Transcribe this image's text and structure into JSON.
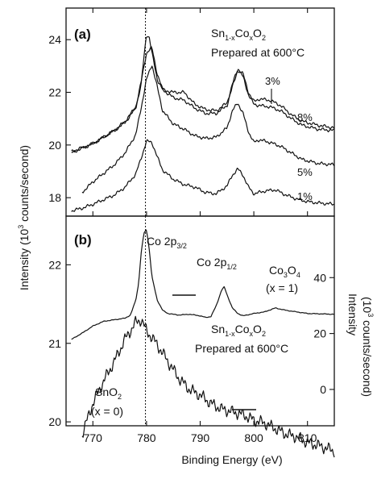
{
  "chart_data": [
    {
      "panel": "(a)",
      "type": "line",
      "xlim": [
        765,
        815
      ],
      "ylim": [
        17.3,
        25.2
      ],
      "xticks": [
        770,
        780,
        790,
        800,
        810
      ],
      "yticks": [
        18,
        20,
        22,
        24
      ],
      "vertical_marker_x": 779.8,
      "annotations": {
        "formula": "Sn1-xCoxO2",
        "prepared": "Prepared at 600°C"
      },
      "series": [
        {
          "name": "8%",
          "x": [
            766,
            770,
            774,
            776,
            778,
            779,
            779.5,
            780,
            780.5,
            781,
            782,
            783,
            785,
            787,
            789,
            791,
            793,
            795,
            796,
            797,
            798,
            799,
            800,
            801,
            803,
            805,
            807,
            809,
            812,
            815
          ],
          "y": [
            19.7,
            20.05,
            20.55,
            20.85,
            21.4,
            22.3,
            23.3,
            24.2,
            24.1,
            23.5,
            22.5,
            22.1,
            22.0,
            22.0,
            21.55,
            21.35,
            21.3,
            21.6,
            22.3,
            22.9,
            22.7,
            22.0,
            21.65,
            21.75,
            21.7,
            21.5,
            21.15,
            20.9,
            20.75,
            20.65
          ]
        },
        {
          "name": "3%",
          "x": [
            766,
            770,
            774,
            776,
            778,
            779,
            780,
            781,
            782,
            783,
            785,
            787,
            789,
            791,
            793,
            795,
            796,
            797,
            798,
            799,
            800,
            801,
            803,
            805,
            807,
            809,
            812,
            815
          ],
          "y": [
            19.75,
            20.05,
            20.55,
            20.9,
            21.45,
            22.4,
            23.5,
            23.7,
            22.7,
            22.1,
            21.8,
            21.7,
            21.4,
            21.2,
            21.2,
            21.5,
            22.2,
            22.85,
            22.6,
            21.9,
            21.55,
            21.5,
            21.45,
            21.3,
            21.0,
            20.75,
            20.6,
            20.55
          ]
        },
        {
          "name": "5%",
          "x": [
            768,
            770,
            774,
            776,
            778,
            779,
            780,
            781,
            782,
            783,
            785,
            787,
            789,
            791,
            793,
            795,
            796,
            797,
            798,
            799,
            800,
            801,
            803,
            805,
            807,
            809,
            812,
            815
          ],
          "y": [
            18.2,
            18.6,
            19.25,
            19.7,
            20.4,
            21.4,
            22.5,
            23.05,
            22.2,
            21.3,
            20.8,
            20.6,
            20.35,
            20.25,
            20.3,
            20.65,
            21.3,
            21.6,
            21.2,
            20.5,
            20.1,
            20.2,
            20.1,
            19.95,
            19.7,
            19.45,
            19.3,
            19.25
          ]
        },
        {
          "name": "1%",
          "x": [
            766,
            768,
            770,
            774,
            776,
            778,
            779,
            780,
            781,
            782,
            783,
            785,
            787,
            789,
            791,
            793,
            795,
            796,
            797,
            798,
            799,
            800,
            802,
            804,
            806,
            808,
            810,
            812,
            815
          ],
          "y": [
            17.5,
            17.6,
            17.75,
            18.1,
            18.4,
            18.9,
            19.5,
            20.15,
            20.1,
            19.55,
            19.05,
            18.7,
            18.5,
            18.4,
            18.2,
            18.15,
            18.45,
            18.85,
            19.1,
            18.85,
            18.4,
            18.15,
            18.25,
            18.3,
            18.1,
            17.95,
            17.85,
            17.8,
            17.75
          ]
        }
      ],
      "series_labels": [
        "8%",
        "3%",
        "5%",
        "1%"
      ]
    },
    {
      "panel": "(b)",
      "type": "line",
      "xlim": [
        765,
        815
      ],
      "ylim_left": [
        19.95,
        22.62
      ],
      "ylim_right": [
        -13,
        62
      ],
      "xticks": [
        770,
        780,
        790,
        800,
        810
      ],
      "yticks_left": [
        20,
        21,
        22
      ],
      "yticks_right": [
        0,
        20,
        40
      ],
      "vertical_marker_x": 779.8,
      "xlabel": "Binding Energy (eV)",
      "ylabel_left": "Intensity (10³ counts/second)",
      "ylabel_right": "Intensity (10³ counts/second)",
      "peak_labels": {
        "co2p32": "Co 2p3/2",
        "co2p12": "Co 2p1/2"
      },
      "annotations": {
        "co3o4": "Co3O4",
        "co3o4_x": "(x = 1)",
        "formula": "Sn1-xCoxO2",
        "prepared": "Prepared at 600°C",
        "sno2": "SnO2",
        "sno2_x": "(x = 0)"
      },
      "series": [
        {
          "name": "Co3O4 (x = 1)",
          "axis": "left",
          "x": [
            766,
            768,
            770,
            772,
            774,
            776,
            777,
            778,
            778.5,
            779,
            779.5,
            780,
            780.5,
            781,
            782,
            783,
            784,
            786,
            788,
            790,
            791,
            792,
            793,
            794,
            794.5,
            795,
            796,
            797,
            798,
            800,
            802,
            804,
            806,
            808,
            810,
            815
          ],
          "y": [
            21.05,
            21.13,
            21.22,
            21.28,
            21.3,
            21.32,
            21.36,
            21.55,
            21.75,
            22.15,
            22.4,
            22.45,
            22.2,
            21.85,
            21.55,
            21.42,
            21.38,
            21.36,
            21.37,
            21.35,
            21.33,
            21.34,
            21.48,
            21.68,
            21.72,
            21.62,
            21.45,
            21.38,
            21.35,
            21.38,
            21.4,
            21.45,
            21.42,
            21.4,
            21.38,
            21.37
          ]
        },
        {
          "name": "SnO2 (x = 0)",
          "axis": "right",
          "x": [
            768,
            770,
            772,
            774,
            776,
            778,
            779,
            780,
            782,
            784,
            786,
            788,
            790,
            792,
            794,
            796,
            798,
            800,
            802,
            804,
            806,
            808,
            810,
            812,
            815
          ],
          "y": [
            -16,
            -5,
            3,
            10,
            18,
            24,
            25,
            21,
            16,
            10,
            4,
            0,
            -2,
            -5,
            -7,
            -8,
            -9,
            -11,
            -12,
            -14,
            -16,
            -17,
            -19,
            -20,
            -22
          ]
        }
      ]
    }
  ]
}
